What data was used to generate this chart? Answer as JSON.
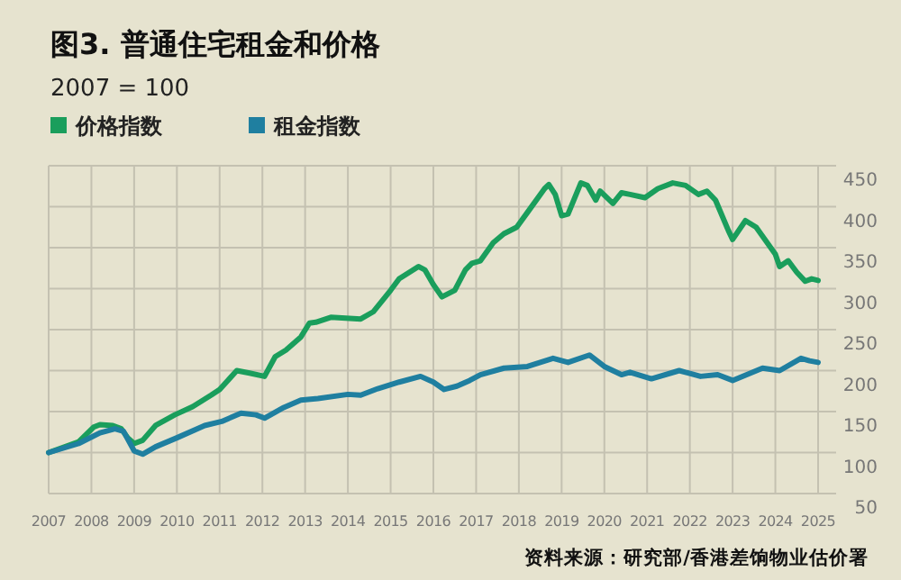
{
  "chart_data": {
    "type": "line",
    "title": "图3. 普通住宅租金和价格",
    "subtitle": "2007 = 100",
    "annotations": [
      "资料来源：研究部/香港差饷物业估价署"
    ],
    "xlim": [
      2007,
      2025
    ],
    "xticks": [
      2007,
      2008,
      2009,
      2010,
      2011,
      2012,
      2013,
      2014,
      2015,
      2016,
      2017,
      2018,
      2019,
      2020,
      2021,
      2022,
      2023,
      2024,
      2025
    ],
    "ylim": [
      50,
      450
    ],
    "yticks": [
      50,
      100,
      150,
      200,
      250,
      300,
      350,
      400,
      450
    ],
    "grid": true,
    "legend": "top left",
    "line_style": "solid",
    "marker": "none",
    "series": [
      {
        "name": "价格指数",
        "color": "#1a9e5c",
        "x": [
          2007,
          2007.7,
          2008.05,
          2008.2,
          2008.5,
          2008.7,
          2008.85,
          2009.0,
          2009.2,
          2009.5,
          2009.95,
          2010.37,
          2010.8,
          2011.0,
          2011.4,
          2011.7,
          2012.05,
          2012.3,
          2012.55,
          2012.9,
          2013.1,
          2013.25,
          2013.6,
          2014.3,
          2014.6,
          2015.0,
          2015.2,
          2015.65,
          2015.8,
          2016.0,
          2016.2,
          2016.5,
          2016.75,
          2016.9,
          2017.1,
          2017.4,
          2017.65,
          2017.95,
          2018.2,
          2018.6,
          2018.7,
          2018.85,
          2019.0,
          2019.15,
          2019.45,
          2019.6,
          2019.8,
          2019.9,
          2020.2,
          2020.4,
          2020.6,
          2020.95,
          2021.25,
          2021.6,
          2021.9,
          2022.2,
          2022.4,
          2022.6,
          2022.9,
          2023.0,
          2023.3,
          2023.55,
          2024.0,
          2024.1,
          2024.3,
          2024.5,
          2024.7,
          2024.85,
          2025.0
        ],
        "values": [
          100,
          113,
          131,
          134,
          133,
          129,
          118,
          111,
          115,
          133,
          146,
          156,
          170,
          177,
          200,
          197,
          193,
          217,
          225,
          241,
          258,
          259,
          265,
          263,
          272,
          298,
          312,
          327,
          323,
          305,
          290,
          298,
          323,
          331,
          334,
          356,
          367,
          375,
          393,
          422,
          427,
          415,
          389,
          391,
          429,
          426,
          408,
          419,
          404,
          417,
          415,
          411,
          422,
          429,
          426,
          415,
          419,
          408,
          371,
          360,
          383,
          375,
          342,
          327,
          334,
          320,
          309,
          312,
          310
        ]
      },
      {
        "name": "租金指数",
        "color": "#1f7fa0",
        "x": [
          2007,
          2007.7,
          2008.2,
          2008.55,
          2008.75,
          2009.0,
          2009.2,
          2009.5,
          2010.0,
          2010.65,
          2011.05,
          2011.5,
          2011.85,
          2012.05,
          2012.5,
          2012.9,
          2013.3,
          2014.0,
          2014.3,
          2014.7,
          2015.2,
          2015.7,
          2016.0,
          2016.25,
          2016.55,
          2016.85,
          2017.1,
          2017.65,
          2018.2,
          2018.8,
          2019.15,
          2019.65,
          2020.0,
          2020.4,
          2020.6,
          2021.1,
          2021.75,
          2022.25,
          2022.65,
          2023.0,
          2023.7,
          2024.1,
          2024.6,
          2024.8,
          2025.0
        ],
        "values": [
          100,
          111,
          124,
          129,
          126,
          102,
          98,
          107,
          118,
          133,
          138,
          148,
          146,
          142,
          155,
          164,
          166,
          171,
          170,
          178,
          186,
          193,
          186,
          177,
          181,
          188,
          195,
          203,
          205,
          215,
          210,
          219,
          205,
          195,
          198,
          190,
          200,
          193,
          195,
          188,
          203,
          200,
          215,
          212,
          210
        ]
      }
    ]
  }
}
